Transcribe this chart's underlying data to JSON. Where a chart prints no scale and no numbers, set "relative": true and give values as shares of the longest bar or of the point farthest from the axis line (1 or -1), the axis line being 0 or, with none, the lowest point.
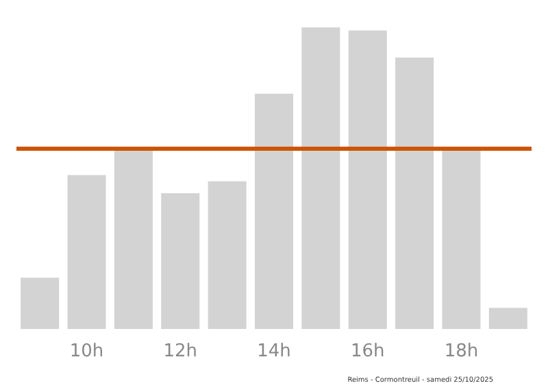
{
  "chart_data": {
    "type": "bar",
    "relative": true,
    "categories": [
      null,
      "10h",
      null,
      "12h",
      null,
      "14h",
      null,
      "16h",
      null,
      "18h",
      null
    ],
    "values": [
      0.17,
      0.51,
      0.6,
      0.45,
      0.49,
      0.78,
      1,
      0.99,
      0.9,
      0.6,
      0.07
    ],
    "color": "#d3d3d3",
    "ref_lines": [
      {
        "axis": "y",
        "value": 0.6,
        "color": "#cc5500"
      }
    ],
    "annotations": [
      "Reims - Cormontreuil - samedi 25/10/2025"
    ]
  }
}
